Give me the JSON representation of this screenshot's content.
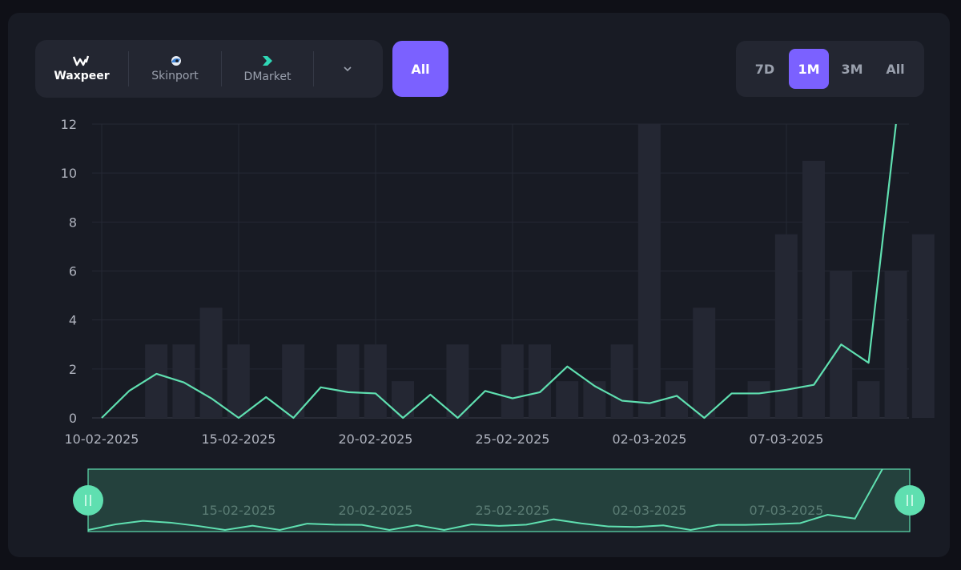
{
  "markets": [
    {
      "name": "Waxpeer",
      "icon": "waxpeer-logo-icon",
      "active": true
    },
    {
      "name": "Skinport",
      "icon": "skinport-logo-icon",
      "active": false
    },
    {
      "name": "DMarket",
      "icon": "dmarket-logo-icon",
      "active": false
    }
  ],
  "market_dropdown_icon": "chevron-down-icon",
  "all_markets_label": "All",
  "ranges": [
    {
      "label": "7D",
      "active": false
    },
    {
      "label": "1M",
      "active": true
    },
    {
      "label": "3M",
      "active": false
    },
    {
      "label": "All",
      "active": false
    }
  ],
  "colors": {
    "accent": "#7b61ff",
    "line": "#5fdfb0",
    "bar": "#242733"
  },
  "chart_data": {
    "type": "bar+line",
    "dates": [
      "10-02-2025",
      "11-02-2025",
      "12-02-2025",
      "13-02-2025",
      "14-02-2025",
      "15-02-2025",
      "16-02-2025",
      "17-02-2025",
      "18-02-2025",
      "19-02-2025",
      "20-02-2025",
      "21-02-2025",
      "22-02-2025",
      "23-02-2025",
      "24-02-2025",
      "25-02-2025",
      "26-02-2025",
      "27-02-2025",
      "28-02-2025",
      "01-03-2025",
      "02-03-2025",
      "03-03-2025",
      "04-03-2025",
      "05-03-2025",
      "06-03-2025",
      "07-03-2025",
      "08-03-2025",
      "09-03-2025",
      "10-03-2025",
      "11-03-2025",
      "12-03-2025"
    ],
    "x_tick_labels": [
      "10-02-2025",
      "15-02-2025",
      "20-02-2025",
      "25-02-2025",
      "02-03-2025",
      "07-03-2025"
    ],
    "navigator_tick_labels": [
      "15-02-2025",
      "20-02-2025",
      "25-02-2025",
      "02-03-2025",
      "07-03-2025"
    ],
    "y_ticks": [
      0,
      2,
      4,
      6,
      8,
      10,
      12
    ],
    "ylim": [
      0,
      12
    ],
    "series": [
      {
        "type": "bar",
        "values": [
          0,
          3,
          3,
          4.5,
          3,
          0,
          3,
          0,
          3,
          3,
          1.5,
          0,
          3,
          0,
          3,
          3,
          1.5,
          1.5,
          3,
          12,
          1.5,
          4.5,
          0,
          1.5,
          7.5,
          10.5,
          6,
          1.5,
          6,
          7.5,
          0
        ]
      },
      {
        "type": "line",
        "values": [
          0,
          1.1,
          1.8,
          1.45,
          0.8,
          0,
          0.85,
          0,
          1.25,
          1.05,
          1.0,
          0,
          0.95,
          0,
          1.1,
          0.8,
          1.05,
          2.1,
          1.3,
          0.7,
          0.6,
          0.9,
          0,
          1.0,
          1.0,
          1.15,
          1.35,
          3.0,
          2.25,
          12.0,
          null
        ]
      }
    ],
    "grid": true,
    "navigator": true
  }
}
